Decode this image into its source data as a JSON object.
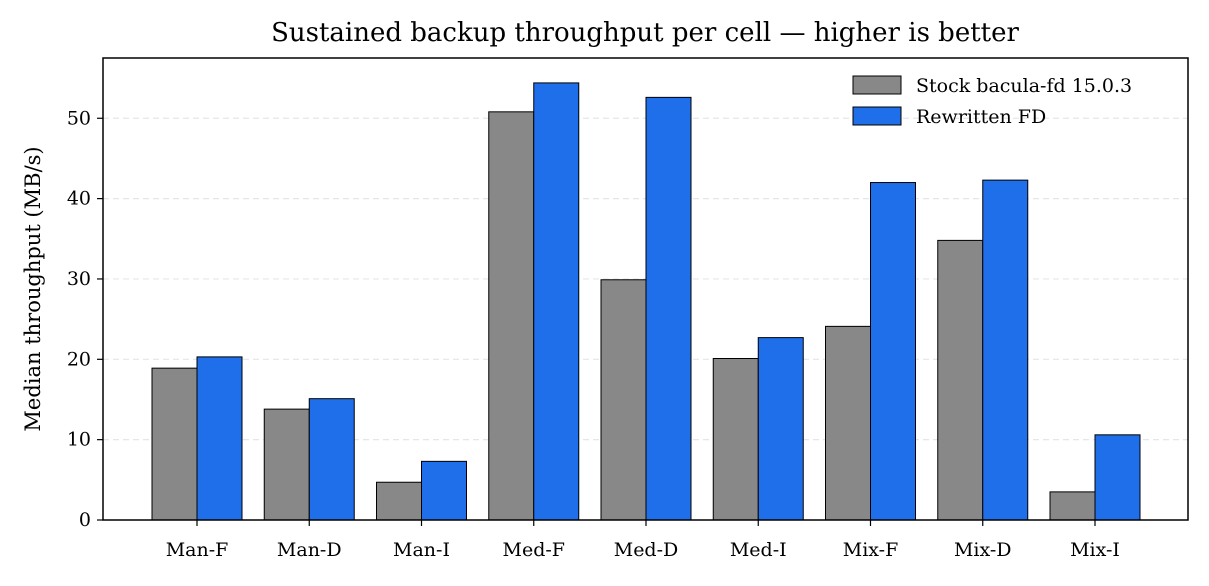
{
  "chart_data": {
    "type": "bar",
    "title": "Sustained backup throughput per cell — higher is better",
    "xlabel": "",
    "ylabel": "Median throughput (MB/s)",
    "categories": [
      "Man-F",
      "Man-D",
      "Man-I",
      "Med-F",
      "Med-D",
      "Med-I",
      "Mix-F",
      "Mix-D",
      "Mix-I"
    ],
    "series": [
      {
        "name": "Stock bacula-fd 15.0.3",
        "color": "#888888",
        "values": [
          18.9,
          13.8,
          4.7,
          50.8,
          29.9,
          20.1,
          24.1,
          34.8,
          3.5
        ]
      },
      {
        "name": "Rewritten FD",
        "color": "#1f6fea",
        "values": [
          20.3,
          15.1,
          7.3,
          54.4,
          52.6,
          22.7,
          42.0,
          42.3,
          10.6
        ]
      }
    ],
    "ylim": [
      0,
      57.5
    ],
    "yticks": [
      0,
      10,
      20,
      30,
      40,
      50
    ],
    "grid": "horizontal dashed",
    "legend_position": "top-right"
  }
}
